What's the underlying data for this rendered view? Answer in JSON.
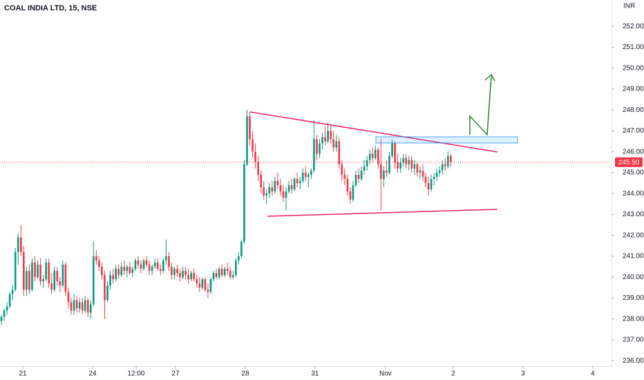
{
  "chart_data": {
    "type": "candlestick",
    "title": "COAL INDIA LTD, 15, NSE",
    "currency": "INR",
    "up_color": "#089981",
    "down_color": "#f23645",
    "xlim": [
      -0.5,
      218.6
    ],
    "ylim": [
      235.74,
      253.26
    ],
    "xticks": [
      {
        "value": 7.67,
        "label": "21"
      },
      {
        "value": 32.67,
        "label": "24"
      },
      {
        "value": 48.27,
        "label": "12:00"
      },
      {
        "value": 62.38,
        "label": "27"
      },
      {
        "value": 87.38,
        "label": "28"
      },
      {
        "value": 112.38,
        "label": "31"
      },
      {
        "value": 137.62,
        "label": "Nov"
      },
      {
        "value": 161.88,
        "label": "2"
      },
      {
        "value": 186.88,
        "label": "3"
      },
      {
        "value": 211.88,
        "label": "4"
      }
    ],
    "yticks": [
      {
        "value": 236,
        "label": "236.00"
      },
      {
        "value": 237,
        "label": "237.00"
      },
      {
        "value": 238,
        "label": "238.00"
      },
      {
        "value": 239,
        "label": "239.00"
      },
      {
        "value": 240,
        "label": "240.00"
      },
      {
        "value": 241,
        "label": "241.00"
      },
      {
        "value": 242,
        "label": "242.00"
      },
      {
        "value": 243,
        "label": "243.00"
      },
      {
        "value": 244,
        "label": "244.00"
      },
      {
        "value": 245,
        "label": "245.00"
      },
      {
        "value": 246,
        "label": "246.00"
      },
      {
        "value": 247,
        "label": "247.00"
      },
      {
        "value": 248,
        "label": "248.00"
      },
      {
        "value": 249,
        "label": "249.00"
      },
      {
        "value": 250,
        "label": "250.00"
      },
      {
        "value": 251,
        "label": "251.00"
      },
      {
        "value": 252,
        "label": "252.00"
      }
    ],
    "last_price": {
      "value": 245.5,
      "label": "245.50"
    },
    "candles": [
      {
        "o": 237.9,
        "h": 238.2,
        "l": 237.7,
        "c": 238.1
      },
      {
        "o": 238.1,
        "h": 238.5,
        "l": 237.9,
        "c": 238.4
      },
      {
        "o": 238.4,
        "h": 238.8,
        "l": 238.2,
        "c": 238.6
      },
      {
        "o": 238.6,
        "h": 239.3,
        "l": 238.5,
        "c": 239.2
      },
      {
        "o": 239.2,
        "h": 239.6,
        "l": 238.9,
        "c": 239.4
      },
      {
        "o": 239.4,
        "h": 241.4,
        "l": 239.3,
        "c": 241.2
      },
      {
        "o": 241.2,
        "h": 242.1,
        "l": 240.6,
        "c": 241.9
      },
      {
        "o": 241.9,
        "h": 242.5,
        "l": 241.0,
        "c": 241.2
      },
      {
        "o": 241.2,
        "h": 241.5,
        "l": 239.1,
        "c": 239.4
      },
      {
        "o": 239.4,
        "h": 240.5,
        "l": 239.1,
        "c": 240.3
      },
      {
        "o": 240.3,
        "h": 240.6,
        "l": 239.2,
        "c": 239.4
      },
      {
        "o": 239.4,
        "h": 240.9,
        "l": 239.3,
        "c": 240.7
      },
      {
        "o": 240.7,
        "h": 241.0,
        "l": 239.8,
        "c": 240.0
      },
      {
        "o": 240.0,
        "h": 240.8,
        "l": 239.9,
        "c": 240.6
      },
      {
        "o": 240.6,
        "h": 240.9,
        "l": 239.6,
        "c": 239.8
      },
      {
        "o": 239.8,
        "h": 240.1,
        "l": 239.5,
        "c": 239.9
      },
      {
        "o": 239.9,
        "h": 240.9,
        "l": 239.8,
        "c": 240.7
      },
      {
        "o": 240.7,
        "h": 240.9,
        "l": 239.5,
        "c": 239.7
      },
      {
        "o": 239.7,
        "h": 240.2,
        "l": 239.2,
        "c": 239.4
      },
      {
        "o": 239.4,
        "h": 240.5,
        "l": 239.3,
        "c": 240.3
      },
      {
        "o": 240.3,
        "h": 240.5,
        "l": 239.6,
        "c": 239.8
      },
      {
        "o": 239.8,
        "h": 240.0,
        "l": 239.3,
        "c": 239.6
      },
      {
        "o": 239.6,
        "h": 240.8,
        "l": 239.5,
        "c": 240.6
      },
      {
        "o": 240.6,
        "h": 240.7,
        "l": 239.1,
        "c": 239.3
      },
      {
        "o": 239.3,
        "h": 239.5,
        "l": 238.5,
        "c": 238.8
      },
      {
        "o": 238.8,
        "h": 239.0,
        "l": 238.2,
        "c": 238.4
      },
      {
        "o": 238.4,
        "h": 239.2,
        "l": 238.2,
        "c": 238.9
      },
      {
        "o": 238.9,
        "h": 239.1,
        "l": 238.3,
        "c": 238.5
      },
      {
        "o": 238.5,
        "h": 239.0,
        "l": 238.3,
        "c": 238.8
      },
      {
        "o": 238.8,
        "h": 239.0,
        "l": 238.2,
        "c": 238.4
      },
      {
        "o": 238.4,
        "h": 239.1,
        "l": 238.3,
        "c": 238.9
      },
      {
        "o": 238.9,
        "h": 239.0,
        "l": 238.1,
        "c": 238.3
      },
      {
        "o": 238.3,
        "h": 238.9,
        "l": 238.0,
        "c": 238.7
      },
      {
        "o": 238.7,
        "h": 241.7,
        "l": 238.6,
        "c": 241.0
      },
      {
        "o": 241.0,
        "h": 241.3,
        "l": 240.6,
        "c": 240.8
      },
      {
        "o": 240.8,
        "h": 241.0,
        "l": 240.3,
        "c": 240.5
      },
      {
        "o": 240.5,
        "h": 240.7,
        "l": 239.9,
        "c": 240.1
      },
      {
        "o": 240.1,
        "h": 240.3,
        "l": 238.0,
        "c": 238.9
      },
      {
        "o": 238.9,
        "h": 239.8,
        "l": 238.8,
        "c": 239.6
      },
      {
        "o": 239.6,
        "h": 240.3,
        "l": 239.4,
        "c": 240.1
      },
      {
        "o": 240.1,
        "h": 240.4,
        "l": 239.7,
        "c": 239.9
      },
      {
        "o": 239.9,
        "h": 240.6,
        "l": 239.8,
        "c": 240.4
      },
      {
        "o": 240.4,
        "h": 240.6,
        "l": 239.9,
        "c": 240.1
      },
      {
        "o": 240.1,
        "h": 240.7,
        "l": 240.0,
        "c": 240.5
      },
      {
        "o": 240.5,
        "h": 240.8,
        "l": 240.1,
        "c": 240.3
      },
      {
        "o": 240.3,
        "h": 240.6,
        "l": 240.0,
        "c": 240.5
      },
      {
        "o": 240.5,
        "h": 240.7,
        "l": 240.1,
        "c": 240.2
      },
      {
        "o": 240.2,
        "h": 240.5,
        "l": 240.0,
        "c": 240.4
      },
      {
        "o": 240.4,
        "h": 240.9,
        "l": 240.3,
        "c": 240.8
      },
      {
        "o": 240.8,
        "h": 241.0,
        "l": 240.4,
        "c": 240.6
      },
      {
        "o": 240.6,
        "h": 240.8,
        "l": 240.2,
        "c": 240.4
      },
      {
        "o": 240.4,
        "h": 240.9,
        "l": 240.3,
        "c": 240.8
      },
      {
        "o": 240.8,
        "h": 241.0,
        "l": 240.5,
        "c": 240.6
      },
      {
        "o": 240.6,
        "h": 240.8,
        "l": 240.1,
        "c": 240.3
      },
      {
        "o": 240.3,
        "h": 240.6,
        "l": 240.1,
        "c": 240.5
      },
      {
        "o": 240.5,
        "h": 240.9,
        "l": 240.4,
        "c": 240.7
      },
      {
        "o": 240.7,
        "h": 240.9,
        "l": 240.3,
        "c": 240.4
      },
      {
        "o": 240.4,
        "h": 240.6,
        "l": 240.1,
        "c": 240.3
      },
      {
        "o": 240.3,
        "h": 240.9,
        "l": 240.2,
        "c": 240.8
      },
      {
        "o": 240.8,
        "h": 241.8,
        "l": 240.6,
        "c": 241.0
      },
      {
        "o": 241.0,
        "h": 241.2,
        "l": 240.3,
        "c": 240.5
      },
      {
        "o": 240.5,
        "h": 240.7,
        "l": 239.9,
        "c": 240.1
      },
      {
        "o": 240.1,
        "h": 240.5,
        "l": 239.9,
        "c": 240.4
      },
      {
        "o": 240.4,
        "h": 240.6,
        "l": 240.0,
        "c": 240.2
      },
      {
        "o": 240.2,
        "h": 240.4,
        "l": 239.8,
        "c": 240.0
      },
      {
        "o": 240.0,
        "h": 240.5,
        "l": 239.9,
        "c": 240.3
      },
      {
        "o": 240.3,
        "h": 240.5,
        "l": 239.9,
        "c": 240.1
      },
      {
        "o": 240.1,
        "h": 240.4,
        "l": 239.7,
        "c": 239.9
      },
      {
        "o": 239.9,
        "h": 240.3,
        "l": 239.8,
        "c": 240.2
      },
      {
        "o": 240.2,
        "h": 240.4,
        "l": 239.8,
        "c": 239.9
      },
      {
        "o": 239.9,
        "h": 240.1,
        "l": 239.5,
        "c": 239.7
      },
      {
        "o": 239.7,
        "h": 240.0,
        "l": 239.3,
        "c": 239.5
      },
      {
        "o": 239.5,
        "h": 240.0,
        "l": 239.4,
        "c": 239.9
      },
      {
        "o": 239.9,
        "h": 240.0,
        "l": 239.3,
        "c": 239.4
      },
      {
        "o": 239.4,
        "h": 239.7,
        "l": 239.0,
        "c": 239.3
      },
      {
        "o": 239.3,
        "h": 240.0,
        "l": 239.2,
        "c": 239.9
      },
      {
        "o": 239.9,
        "h": 240.3,
        "l": 239.8,
        "c": 240.2
      },
      {
        "o": 240.2,
        "h": 240.4,
        "l": 239.9,
        "c": 240.0
      },
      {
        "o": 240.0,
        "h": 240.5,
        "l": 239.9,
        "c": 240.4
      },
      {
        "o": 240.4,
        "h": 240.6,
        "l": 240.0,
        "c": 240.1
      },
      {
        "o": 240.1,
        "h": 240.5,
        "l": 240.0,
        "c": 240.4
      },
      {
        "o": 240.4,
        "h": 240.7,
        "l": 240.1,
        "c": 240.3
      },
      {
        "o": 240.3,
        "h": 240.5,
        "l": 239.9,
        "c": 240.0
      },
      {
        "o": 240.0,
        "h": 240.3,
        "l": 239.9,
        "c": 240.1
      },
      {
        "o": 240.1,
        "h": 240.9,
        "l": 240.0,
        "c": 240.8
      },
      {
        "o": 240.8,
        "h": 241.2,
        "l": 240.6,
        "c": 241.0
      },
      {
        "o": 241.0,
        "h": 241.8,
        "l": 240.9,
        "c": 241.7
      },
      {
        "o": 241.7,
        "h": 245.6,
        "l": 241.6,
        "c": 245.4
      },
      {
        "o": 245.4,
        "h": 248.0,
        "l": 245.3,
        "c": 247.7
      },
      {
        "o": 247.7,
        "h": 247.9,
        "l": 246.3,
        "c": 246.6
      },
      {
        "o": 246.6,
        "h": 247.0,
        "l": 245.7,
        "c": 246.0
      },
      {
        "o": 246.0,
        "h": 246.4,
        "l": 245.2,
        "c": 245.5
      },
      {
        "o": 245.5,
        "h": 245.8,
        "l": 244.6,
        "c": 244.9
      },
      {
        "o": 244.9,
        "h": 245.1,
        "l": 244.0,
        "c": 244.3
      },
      {
        "o": 244.3,
        "h": 244.6,
        "l": 243.7,
        "c": 243.9
      },
      {
        "o": 243.9,
        "h": 244.2,
        "l": 243.5,
        "c": 244.0
      },
      {
        "o": 244.0,
        "h": 244.5,
        "l": 243.8,
        "c": 244.3
      },
      {
        "o": 244.3,
        "h": 244.6,
        "l": 243.9,
        "c": 244.1
      },
      {
        "o": 244.1,
        "h": 244.8,
        "l": 244.0,
        "c": 244.6
      },
      {
        "o": 244.6,
        "h": 245.0,
        "l": 244.2,
        "c": 244.4
      },
      {
        "o": 244.4,
        "h": 244.7,
        "l": 243.9,
        "c": 244.1
      },
      {
        "o": 244.1,
        "h": 244.4,
        "l": 243.6,
        "c": 243.8
      },
      {
        "o": 243.8,
        "h": 244.3,
        "l": 243.2,
        "c": 244.1
      },
      {
        "o": 244.1,
        "h": 244.6,
        "l": 244.0,
        "c": 244.4
      },
      {
        "o": 244.4,
        "h": 244.7,
        "l": 244.0,
        "c": 244.2
      },
      {
        "o": 244.2,
        "h": 244.8,
        "l": 244.1,
        "c": 244.7
      },
      {
        "o": 244.7,
        "h": 245.0,
        "l": 244.3,
        "c": 244.5
      },
      {
        "o": 244.5,
        "h": 244.8,
        "l": 244.2,
        "c": 244.6
      },
      {
        "o": 244.6,
        "h": 245.2,
        "l": 244.5,
        "c": 245.0
      },
      {
        "o": 245.0,
        "h": 245.3,
        "l": 244.6,
        "c": 244.8
      },
      {
        "o": 244.8,
        "h": 245.0,
        "l": 244.3,
        "c": 244.9
      },
      {
        "o": 244.9,
        "h": 245.2,
        "l": 244.7,
        "c": 245.1
      },
      {
        "o": 245.1,
        "h": 247.5,
        "l": 245.0,
        "c": 246.6
      },
      {
        "o": 246.6,
        "h": 246.8,
        "l": 245.6,
        "c": 245.9
      },
      {
        "o": 245.9,
        "h": 246.6,
        "l": 245.7,
        "c": 246.4
      },
      {
        "o": 246.4,
        "h": 246.9,
        "l": 246.1,
        "c": 246.7
      },
      {
        "o": 246.7,
        "h": 247.2,
        "l": 246.3,
        "c": 246.5
      },
      {
        "o": 246.5,
        "h": 247.4,
        "l": 246.4,
        "c": 247.0
      },
      {
        "o": 247.0,
        "h": 247.3,
        "l": 246.4,
        "c": 246.6
      },
      {
        "o": 246.6,
        "h": 247.0,
        "l": 246.0,
        "c": 246.2
      },
      {
        "o": 246.2,
        "h": 246.8,
        "l": 246.0,
        "c": 246.5
      },
      {
        "o": 246.5,
        "h": 246.7,
        "l": 245.2,
        "c": 245.4
      },
      {
        "o": 245.4,
        "h": 245.6,
        "l": 244.6,
        "c": 244.9
      },
      {
        "o": 244.9,
        "h": 245.2,
        "l": 244.4,
        "c": 244.7
      },
      {
        "o": 244.7,
        "h": 244.9,
        "l": 243.9,
        "c": 244.1
      },
      {
        "o": 244.1,
        "h": 244.3,
        "l": 243.5,
        "c": 243.7
      },
      {
        "o": 243.7,
        "h": 244.6,
        "l": 243.6,
        "c": 244.4
      },
      {
        "o": 244.4,
        "h": 245.1,
        "l": 244.3,
        "c": 244.9
      },
      {
        "o": 244.9,
        "h": 245.2,
        "l": 244.5,
        "c": 244.7
      },
      {
        "o": 244.7,
        "h": 245.3,
        "l": 244.6,
        "c": 245.1
      },
      {
        "o": 245.1,
        "h": 245.6,
        "l": 244.9,
        "c": 245.3
      },
      {
        "o": 245.3,
        "h": 245.8,
        "l": 245.1,
        "c": 245.6
      },
      {
        "o": 245.6,
        "h": 246.1,
        "l": 245.4,
        "c": 245.9
      },
      {
        "o": 245.9,
        "h": 246.2,
        "l": 245.5,
        "c": 245.7
      },
      {
        "o": 245.7,
        "h": 246.3,
        "l": 245.6,
        "c": 246.1
      },
      {
        "o": 246.1,
        "h": 246.2,
        "l": 245.2,
        "c": 245.4
      },
      {
        "o": 245.4,
        "h": 246.6,
        "l": 243.2,
        "c": 244.7
      },
      {
        "o": 244.7,
        "h": 245.3,
        "l": 244.3,
        "c": 245.1
      },
      {
        "o": 245.1,
        "h": 245.6,
        "l": 244.8,
        "c": 245.0
      },
      {
        "o": 245.0,
        "h": 246.0,
        "l": 244.9,
        "c": 245.8
      },
      {
        "o": 245.8,
        "h": 246.6,
        "l": 245.7,
        "c": 246.4
      },
      {
        "o": 246.4,
        "h": 246.5,
        "l": 245.2,
        "c": 245.5
      },
      {
        "o": 245.5,
        "h": 245.9,
        "l": 245.0,
        "c": 245.2
      },
      {
        "o": 245.2,
        "h": 245.7,
        "l": 245.0,
        "c": 245.5
      },
      {
        "o": 245.5,
        "h": 245.9,
        "l": 245.3,
        "c": 245.7
      },
      {
        "o": 245.7,
        "h": 245.9,
        "l": 245.2,
        "c": 245.4
      },
      {
        "o": 245.4,
        "h": 245.8,
        "l": 245.1,
        "c": 245.6
      },
      {
        "o": 245.6,
        "h": 245.8,
        "l": 245.0,
        "c": 245.2
      },
      {
        "o": 245.2,
        "h": 245.6,
        "l": 244.9,
        "c": 245.4
      },
      {
        "o": 245.4,
        "h": 245.5,
        "l": 244.8,
        "c": 245.0
      },
      {
        "o": 245.0,
        "h": 245.3,
        "l": 244.7,
        "c": 245.1
      },
      {
        "o": 245.1,
        "h": 245.4,
        "l": 244.6,
        "c": 244.8
      },
      {
        "o": 244.8,
        "h": 245.0,
        "l": 244.3,
        "c": 244.5
      },
      {
        "o": 244.5,
        "h": 244.8,
        "l": 243.9,
        "c": 244.2
      },
      {
        "o": 244.2,
        "h": 244.9,
        "l": 244.1,
        "c": 244.7
      },
      {
        "o": 244.7,
        "h": 245.0,
        "l": 244.4,
        "c": 244.8
      },
      {
        "o": 244.8,
        "h": 245.2,
        "l": 244.6,
        "c": 245.0
      },
      {
        "o": 245.0,
        "h": 245.3,
        "l": 244.8,
        "c": 245.1
      },
      {
        "o": 245.1,
        "h": 245.6,
        "l": 244.9,
        "c": 245.4
      },
      {
        "o": 245.4,
        "h": 245.7,
        "l": 245.1,
        "c": 245.3
      },
      {
        "o": 245.3,
        "h": 246.0,
        "l": 245.2,
        "c": 245.8
      },
      {
        "o": 245.8,
        "h": 245.9,
        "l": 245.3,
        "c": 245.5
      }
    ]
  }
}
